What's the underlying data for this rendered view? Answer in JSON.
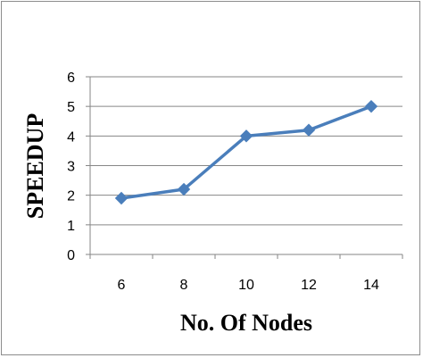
{
  "chart_data": {
    "type": "line",
    "title": "",
    "xlabel": "No. Of Nodes",
    "ylabel": "SPEEDUP",
    "categories": [
      "6",
      "8",
      "10",
      "12",
      "14"
    ],
    "series": [
      {
        "values": [
          1.9,
          2.2,
          4.0,
          4.2,
          5.0
        ]
      }
    ],
    "ylim": [
      0,
      6
    ],
    "yticks": [
      "0",
      "1",
      "2",
      "3",
      "4",
      "5",
      "6"
    ],
    "grid": "horizontal",
    "legend": "none",
    "colors": {
      "line": "#4a7ebb",
      "marker": "#4a7ebb",
      "grid": "#868686",
      "axis": "#868686"
    }
  }
}
